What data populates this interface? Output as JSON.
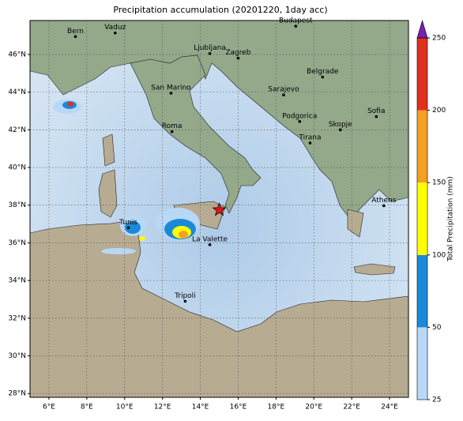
{
  "map": {
    "title": "Precipitation accumulation (20201220, 1day acc)",
    "xlim": [
      5,
      25
    ],
    "ylim": [
      27.8,
      47.8
    ],
    "xticks": [
      {
        "value": 6,
        "label": "6°E"
      },
      {
        "value": 8,
        "label": "8°E"
      },
      {
        "value": 10,
        "label": "10°E"
      },
      {
        "value": 12,
        "label": "12°E"
      },
      {
        "value": 14,
        "label": "14°E"
      },
      {
        "value": 16,
        "label": "16°E"
      },
      {
        "value": 18,
        "label": "18°E"
      },
      {
        "value": 20,
        "label": "20°E"
      },
      {
        "value": 22,
        "label": "22°E"
      },
      {
        "value": 24,
        "label": "24°E"
      }
    ],
    "yticks": [
      {
        "value": 28,
        "label": "28°N"
      },
      {
        "value": 30,
        "label": "30°N"
      },
      {
        "value": 32,
        "label": "32°N"
      },
      {
        "value": 34,
        "label": "34°N"
      },
      {
        "value": 36,
        "label": "36°N"
      },
      {
        "value": 38,
        "label": "38°N"
      },
      {
        "value": 40,
        "label": "40°N"
      },
      {
        "value": 42,
        "label": "42°N"
      },
      {
        "value": 44,
        "label": "44°N"
      },
      {
        "value": 46,
        "label": "46°N"
      }
    ],
    "grid": true,
    "cities": [
      {
        "name": "Bern",
        "lon": 7.4,
        "lat": 46.95
      },
      {
        "name": "Vaduz",
        "lon": 9.5,
        "lat": 47.14
      },
      {
        "name": "Budapest",
        "lon": 19.04,
        "lat": 47.5
      },
      {
        "name": "Ljubljana",
        "lon": 14.5,
        "lat": 46.05
      },
      {
        "name": "Zagreb",
        "lon": 16.0,
        "lat": 45.8
      },
      {
        "name": "Belgrade",
        "lon": 20.46,
        "lat": 44.8
      },
      {
        "name": "San Marino",
        "lon": 12.45,
        "lat": 43.94
      },
      {
        "name": "Sarajevo",
        "lon": 18.4,
        "lat": 43.85
      },
      {
        "name": "Sofia",
        "lon": 23.3,
        "lat": 42.7
      },
      {
        "name": "Podgorica",
        "lon": 19.25,
        "lat": 42.44
      },
      {
        "name": "Skopje",
        "lon": 21.4,
        "lat": 42.0
      },
      {
        "name": "Roma",
        "lon": 12.5,
        "lat": 41.9
      },
      {
        "name": "Tirana",
        "lon": 19.8,
        "lat": 41.3
      },
      {
        "name": "Athens",
        "lon": 23.7,
        "lat": 37.97
      },
      {
        "name": "Tunis",
        "lon": 10.2,
        "lat": 36.8
      },
      {
        "name": "La Valette",
        "lon": 14.5,
        "lat": 35.9
      },
      {
        "name": "Tripoli",
        "lon": 13.2,
        "lat": 32.9
      }
    ],
    "event": {
      "lon": 15.0,
      "lat": 37.75,
      "color": "#e8141c"
    },
    "colorbar": {
      "label": "Total Precipitation (mm)",
      "ticks": [
        25,
        50,
        100,
        150,
        200,
        250
      ],
      "colors": [
        "#b8d8f8",
        "#1a8ad8",
        "#ffff00",
        "#f4a021",
        "#e0301e"
      ],
      "extend_color": "#7a1fb0"
    }
  }
}
